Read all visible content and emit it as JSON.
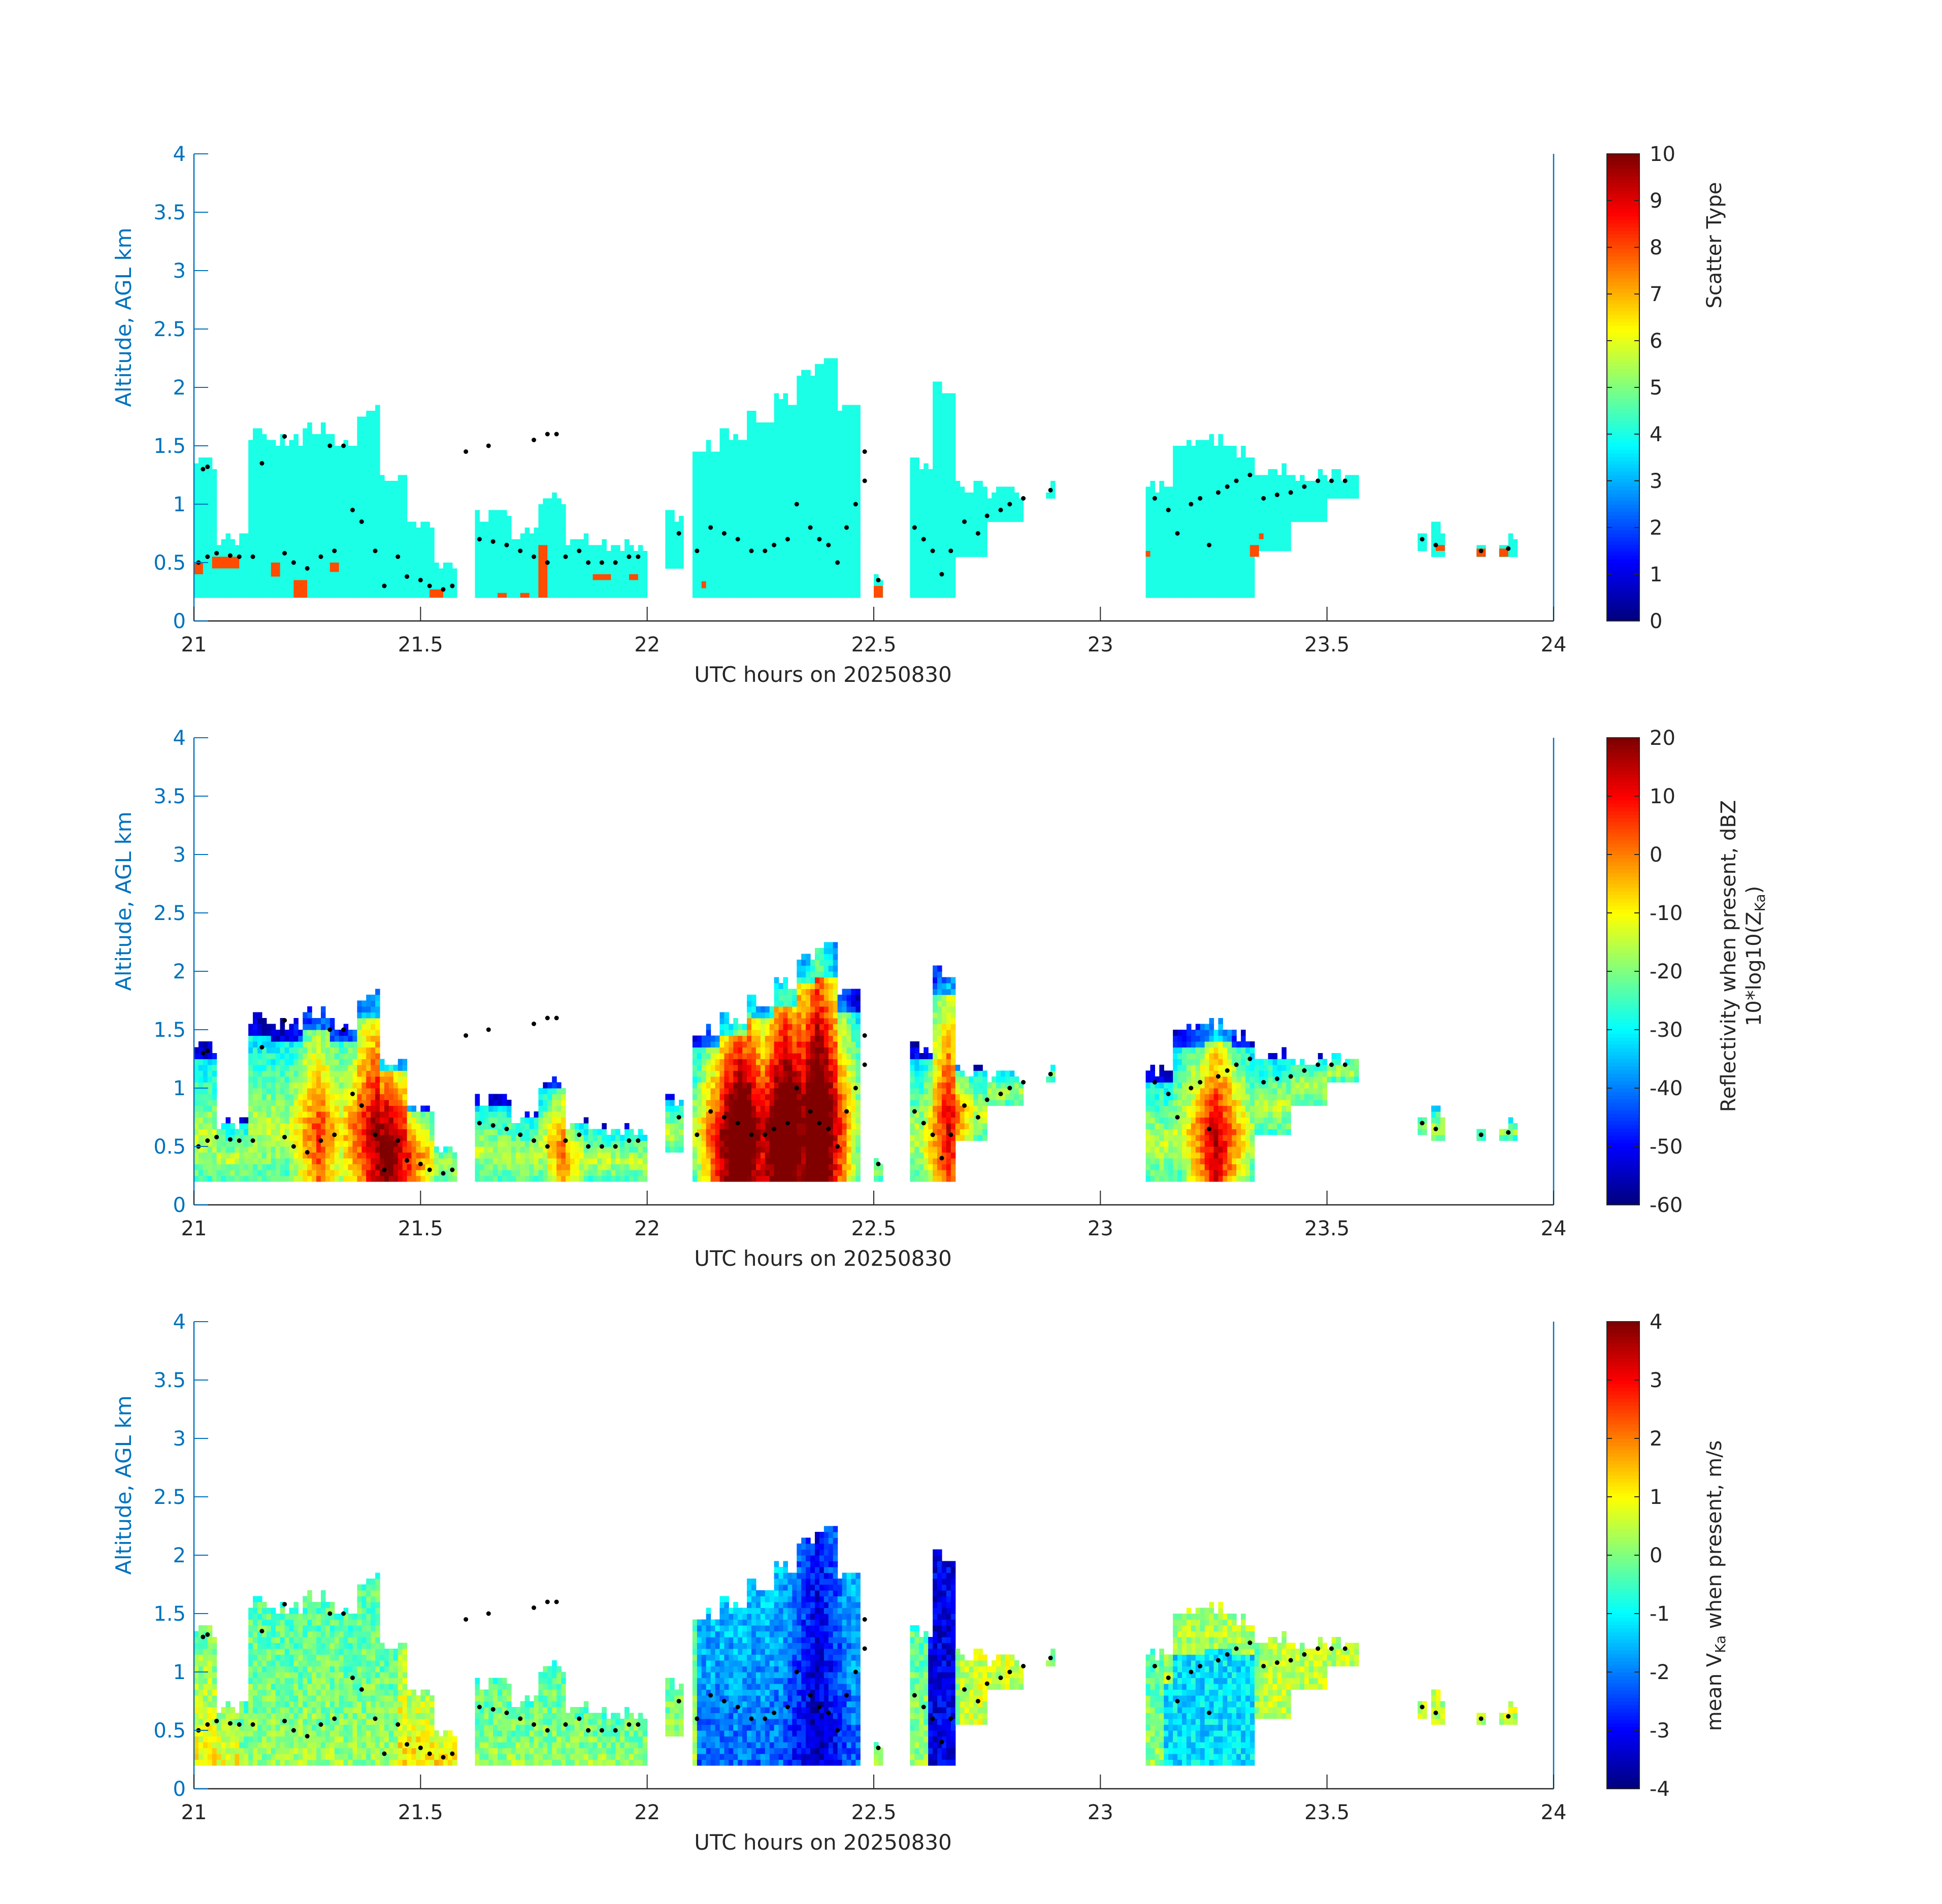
{
  "chart_data": [
    {
      "type": "heatmap",
      "xlabel": "UTC hours on 20250830",
      "ylabel": "Altitude, AGL km",
      "xlim": [
        21,
        24
      ],
      "ylim": [
        0,
        4
      ],
      "xticks": [
        "21",
        "21.5",
        "22",
        "22.5",
        "23",
        "23.5",
        "24"
      ],
      "yticks": [
        "0",
        "0.5",
        "1",
        "1.5",
        "2",
        "2.5",
        "3",
        "3.5",
        "4"
      ],
      "colorbar": {
        "label": "Scatter Type",
        "sublabel": "",
        "range": [
          0,
          10
        ],
        "ticks": [
          "0",
          "1",
          "2",
          "3",
          "4",
          "5",
          "6",
          "7",
          "8",
          "9",
          "10"
        ]
      },
      "field": "scatter",
      "colormap": "jet"
    },
    {
      "type": "heatmap",
      "xlabel": "UTC hours on 20250830",
      "ylabel": "Altitude, AGL km",
      "xlim": [
        21,
        24
      ],
      "ylim": [
        0,
        4
      ],
      "xticks": [
        "21",
        "21.5",
        "22",
        "22.5",
        "23",
        "23.5",
        "24"
      ],
      "yticks": [
        "0",
        "0.5",
        "1",
        "1.5",
        "2",
        "2.5",
        "3",
        "3.5",
        "4"
      ],
      "colorbar": {
        "label": "Reflectivity when present, dBZ",
        "sublabel": "10*log10(Z",
        "sublabel_sub": "Ka",
        "sublabel_end": ")",
        "range": [
          -60,
          20
        ],
        "ticks": [
          "-60",
          "-50",
          "-40",
          "-30",
          "-20",
          "-10",
          "0",
          "10",
          "20"
        ]
      },
      "field": "reflectivity",
      "colormap": "jet"
    },
    {
      "type": "heatmap",
      "xlabel": "UTC hours on 20250830",
      "ylabel": "Altitude, AGL km",
      "xlim": [
        21,
        24
      ],
      "ylim": [
        0,
        4
      ],
      "xticks": [
        "21",
        "21.5",
        "22",
        "22.5",
        "23",
        "23.5",
        "24"
      ],
      "yticks": [
        "0",
        "0.5",
        "1",
        "1.5",
        "2",
        "2.5",
        "3",
        "3.5",
        "4"
      ],
      "colorbar": {
        "label": "mean V",
        "label_sub": "Ka",
        "label_end": " when present, m/s",
        "range": [
          -4,
          4
        ],
        "ticks": [
          "-4",
          "-3",
          "-2",
          "-1",
          "0",
          "1",
          "2",
          "3",
          "4"
        ]
      },
      "field": "velocity",
      "colormap": "jet"
    }
  ],
  "echo_columns": [
    [
      21.0,
      21.05,
      0.2,
      1.4
    ],
    [
      21.05,
      21.12,
      0.2,
      0.75
    ],
    [
      21.12,
      21.17,
      0.2,
      1.62
    ],
    [
      21.17,
      21.24,
      0.2,
      1.58
    ],
    [
      21.24,
      21.3,
      0.2,
      1.7
    ],
    [
      21.3,
      21.36,
      0.2,
      1.6
    ],
    [
      21.36,
      21.41,
      0.2,
      1.83
    ],
    [
      21.41,
      21.47,
      0.2,
      1.3
    ],
    [
      21.47,
      21.53,
      0.2,
      0.9
    ],
    [
      21.53,
      21.58,
      0.2,
      0.55
    ],
    [
      21.62,
      21.7,
      0.2,
      0.95
    ],
    [
      21.7,
      21.76,
      0.2,
      0.8
    ],
    [
      21.76,
      21.82,
      0.2,
      1.1
    ],
    [
      21.82,
      21.9,
      0.2,
      0.75
    ],
    [
      21.9,
      22.0,
      0.2,
      0.7
    ],
    [
      22.04,
      22.08,
      0.45,
      0.95
    ],
    [
      22.1,
      22.16,
      0.2,
      1.55
    ],
    [
      22.16,
      22.22,
      0.2,
      1.65
    ],
    [
      22.22,
      22.28,
      0.2,
      1.8
    ],
    [
      22.28,
      22.33,
      0.2,
      1.95
    ],
    [
      22.33,
      22.37,
      0.2,
      2.15
    ],
    [
      22.37,
      22.42,
      0.2,
      2.25
    ],
    [
      22.42,
      22.47,
      0.2,
      1.9
    ],
    [
      22.5,
      22.52,
      0.2,
      0.45
    ],
    [
      22.58,
      22.63,
      0.2,
      1.4
    ],
    [
      22.63,
      22.68,
      0.2,
      2.05
    ],
    [
      22.68,
      22.75,
      0.55,
      1.2
    ],
    [
      22.75,
      22.83,
      0.85,
      1.15
    ],
    [
      22.88,
      22.9,
      1.05,
      1.2
    ],
    [
      23.1,
      23.16,
      0.2,
      1.2
    ],
    [
      23.16,
      23.23,
      0.2,
      1.55
    ],
    [
      23.23,
      23.29,
      0.2,
      1.6
    ],
    [
      23.29,
      23.34,
      0.2,
      1.5
    ],
    [
      23.34,
      23.42,
      0.6,
      1.35
    ],
    [
      23.42,
      23.5,
      0.85,
      1.3
    ],
    [
      23.5,
      23.57,
      1.05,
      1.3
    ],
    [
      23.7,
      23.72,
      0.6,
      0.75
    ],
    [
      23.73,
      23.76,
      0.55,
      0.85
    ],
    [
      23.82,
      23.85,
      0.55,
      0.65
    ],
    [
      23.88,
      23.92,
      0.55,
      0.75
    ]
  ],
  "base_height_points": [
    [
      21.01,
      0.5
    ],
    [
      21.03,
      0.55
    ],
    [
      21.05,
      0.58
    ],
    [
      21.08,
      0.56
    ],
    [
      21.1,
      0.55
    ],
    [
      21.13,
      0.55
    ],
    [
      21.2,
      0.58
    ],
    [
      21.22,
      0.5
    ],
    [
      21.25,
      0.45
    ],
    [
      21.28,
      0.55
    ],
    [
      21.31,
      0.6
    ],
    [
      21.35,
      0.95
    ],
    [
      21.37,
      0.85
    ],
    [
      21.4,
      0.6
    ],
    [
      21.42,
      0.3
    ],
    [
      21.45,
      0.55
    ],
    [
      21.47,
      0.38
    ],
    [
      21.5,
      0.35
    ],
    [
      21.52,
      0.3
    ],
    [
      21.55,
      0.27
    ],
    [
      21.57,
      0.3
    ],
    [
      21.63,
      0.7
    ],
    [
      21.66,
      0.68
    ],
    [
      21.69,
      0.65
    ],
    [
      21.72,
      0.6
    ],
    [
      21.75,
      0.55
    ],
    [
      21.78,
      0.5
    ],
    [
      21.82,
      0.55
    ],
    [
      21.85,
      0.6
    ],
    [
      21.87,
      0.5
    ],
    [
      21.9,
      0.5
    ],
    [
      21.93,
      0.5
    ],
    [
      21.96,
      0.55
    ],
    [
      21.98,
      0.55
    ],
    [
      22.07,
      0.75
    ],
    [
      22.11,
      0.6
    ],
    [
      22.14,
      0.8
    ],
    [
      22.17,
      0.75
    ],
    [
      22.2,
      0.7
    ],
    [
      22.23,
      0.6
    ],
    [
      22.26,
      0.6
    ],
    [
      22.28,
      0.65
    ],
    [
      22.31,
      0.7
    ],
    [
      22.33,
      1.0
    ],
    [
      22.36,
      0.8
    ],
    [
      22.38,
      0.7
    ],
    [
      22.4,
      0.65
    ],
    [
      22.42,
      0.5
    ],
    [
      22.44,
      0.8
    ],
    [
      22.46,
      1.0
    ],
    [
      22.48,
      1.2
    ],
    [
      22.51,
      0.35
    ],
    [
      22.59,
      0.8
    ],
    [
      22.61,
      0.7
    ],
    [
      22.63,
      0.6
    ],
    [
      22.65,
      0.4
    ],
    [
      22.67,
      0.6
    ],
    [
      22.7,
      0.85
    ],
    [
      22.73,
      0.75
    ],
    [
      22.75,
      0.9
    ],
    [
      22.78,
      0.95
    ],
    [
      22.8,
      1.0
    ],
    [
      22.83,
      1.05
    ],
    [
      22.89,
      1.12
    ],
    [
      23.12,
      1.05
    ],
    [
      23.15,
      0.95
    ],
    [
      23.17,
      0.75
    ],
    [
      23.2,
      1.0
    ],
    [
      23.22,
      1.05
    ],
    [
      23.24,
      0.65
    ],
    [
      23.26,
      1.1
    ],
    [
      23.28,
      1.15
    ],
    [
      23.3,
      1.2
    ],
    [
      23.33,
      1.25
    ],
    [
      23.36,
      1.05
    ],
    [
      23.39,
      1.08
    ],
    [
      23.42,
      1.1
    ],
    [
      23.45,
      1.15
    ],
    [
      23.48,
      1.2
    ],
    [
      23.51,
      1.2
    ],
    [
      23.54,
      1.2
    ],
    [
      23.71,
      0.7
    ],
    [
      23.74,
      0.65
    ],
    [
      23.84,
      0.6
    ],
    [
      23.9,
      0.62
    ],
    [
      21.02,
      1.3
    ],
    [
      21.03,
      1.32
    ],
    [
      21.15,
      1.35
    ],
    [
      21.2,
      1.58
    ],
    [
      21.3,
      1.5
    ],
    [
      21.33,
      1.5
    ],
    [
      21.6,
      1.45
    ],
    [
      21.65,
      1.5
    ],
    [
      21.75,
      1.55
    ],
    [
      21.78,
      1.6
    ],
    [
      21.8,
      1.6
    ],
    [
      22.48,
      1.45
    ]
  ],
  "red_patches": [
    [
      21.0,
      21.02,
      0.4,
      0.5
    ],
    [
      21.04,
      21.1,
      0.45,
      0.55
    ],
    [
      21.17,
      21.19,
      0.38,
      0.5
    ],
    [
      21.22,
      21.25,
      0.2,
      0.35
    ],
    [
      21.3,
      21.32,
      0.42,
      0.5
    ],
    [
      21.52,
      21.55,
      0.2,
      0.27
    ],
    [
      21.67,
      21.69,
      0.2,
      0.24
    ],
    [
      21.72,
      21.74,
      0.2,
      0.24
    ],
    [
      21.76,
      21.78,
      0.2,
      0.65
    ],
    [
      21.88,
      21.92,
      0.35,
      0.4
    ],
    [
      21.96,
      21.98,
      0.35,
      0.4
    ],
    [
      22.12,
      22.13,
      0.28,
      0.34
    ],
    [
      22.5,
      22.52,
      0.2,
      0.3
    ],
    [
      23.1,
      23.11,
      0.55,
      0.6
    ],
    [
      23.33,
      23.35,
      0.55,
      0.65
    ],
    [
      23.35,
      23.36,
      0.7,
      0.75
    ],
    [
      23.74,
      23.76,
      0.6,
      0.65
    ],
    [
      23.83,
      23.85,
      0.55,
      0.62
    ],
    [
      23.88,
      23.9,
      0.55,
      0.62
    ]
  ]
}
